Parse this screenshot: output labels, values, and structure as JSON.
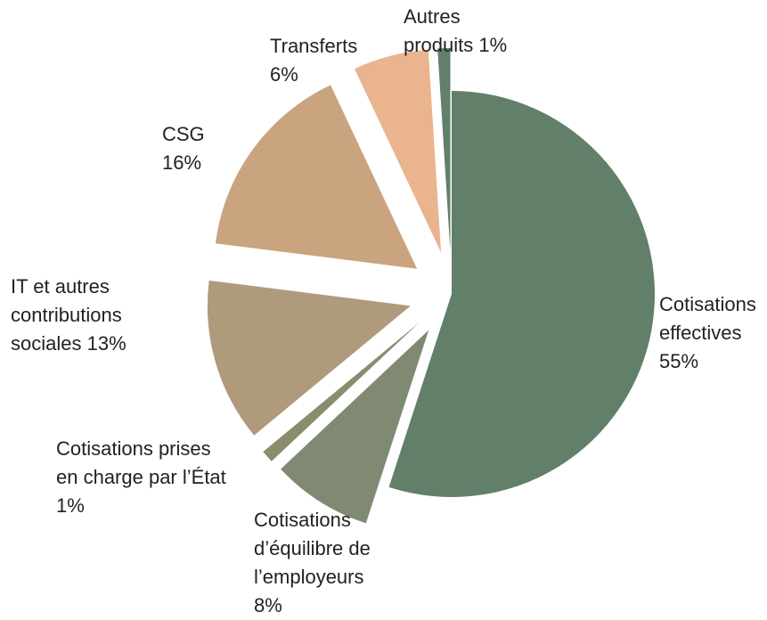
{
  "chart_data": {
    "type": "pie",
    "categories": [
      "Cotisations effectives",
      "Cotisations d’équilibre de l’employeurs",
      "Cotisations prises en charge par l’État",
      "IT et autres contributions sociales",
      "CSG",
      "Transferts",
      "Autres produits"
    ],
    "values": [
      55,
      8,
      1,
      13,
      16,
      6,
      1
    ],
    "value_labels": [
      "55%",
      "8%",
      "1%",
      "13%",
      "16%",
      "6%",
      "1%"
    ],
    "colors": [
      "#627f69",
      "#808a72",
      "#8b8c6d",
      "#b09a7c",
      "#c9a47f",
      "#e9b48e",
      "#627f69"
    ]
  }
}
